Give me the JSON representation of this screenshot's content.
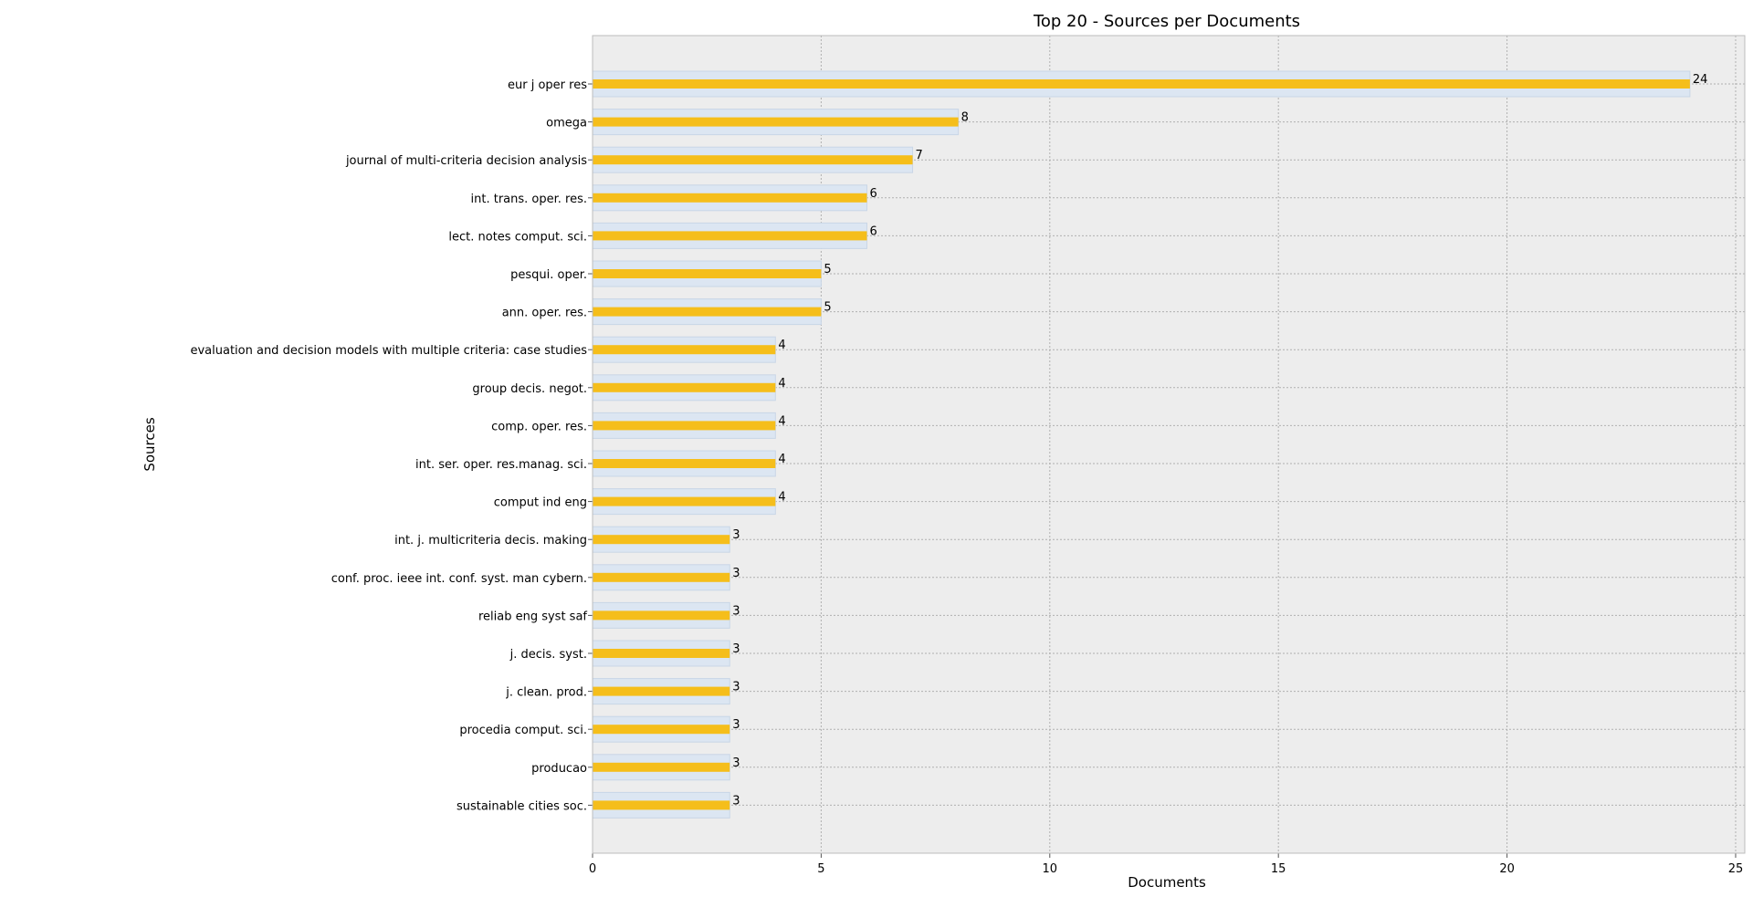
{
  "chart_data": {
    "type": "bar",
    "orientation": "horizontal",
    "title": "Top 20 - Sources per Documents",
    "xlabel": "Documents",
    "ylabel": "Sources",
    "xlim": [
      0,
      25
    ],
    "xticks": [
      0,
      5,
      10,
      15,
      20,
      25
    ],
    "grid": true,
    "categories": [
      "eur j oper res",
      "omega",
      "journal of multi-criteria decision analysis",
      "int. trans. oper. res.",
      "lect. notes comput. sci.",
      "pesqui. oper.",
      "ann. oper. res.",
      "evaluation and decision models with multiple criteria: case studies",
      "group decis. negot.",
      "comp. oper. res.",
      "int. ser. oper. res.manag. sci.",
      "comput ind eng",
      "int. j. multicriteria decis. making",
      "conf. proc. ieee int. conf. syst. man cybern.",
      "reliab eng syst saf",
      "j. decis. syst.",
      "j. clean. prod.",
      "procedia comput. sci.",
      "producao",
      "sustainable cities soc."
    ],
    "values": [
      24,
      8,
      7,
      6,
      6,
      5,
      5,
      4,
      4,
      4,
      4,
      4,
      3,
      3,
      3,
      3,
      3,
      3,
      3,
      3
    ],
    "colors": {
      "bar": "#f5be1b",
      "bar_shadow": "#dce6f2",
      "plot_background": "#ededed",
      "grid": "#b0b0b0"
    }
  }
}
